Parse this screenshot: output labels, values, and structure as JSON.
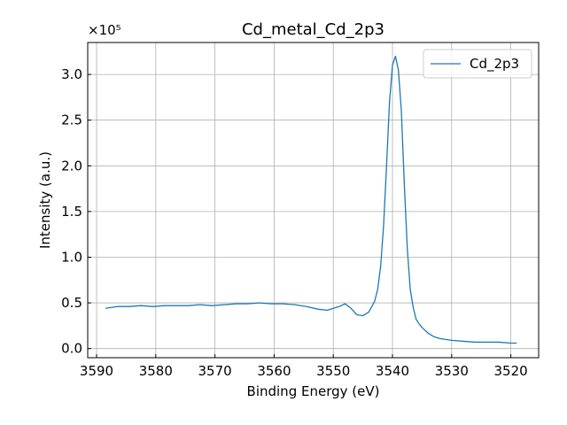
{
  "chart_data": {
    "type": "line",
    "title": "Cd_metal_Cd_2p3",
    "xlabel": "Binding Energy (eV)",
    "ylabel": "Intensity (a.u.)",
    "y_multiplier_label": "×10⁵",
    "xlim": [
      3591.5,
      3515.3
    ],
    "ylim": [
      -0.1,
      3.35
    ],
    "x_reversed": true,
    "y_scale_factor": 100000,
    "xticks": [
      3590,
      3580,
      3570,
      3560,
      3550,
      3540,
      3530,
      3520
    ],
    "yticks": [
      0.0,
      0.5,
      1.0,
      1.5,
      2.0,
      2.5,
      3.0
    ],
    "ytick_labels": [
      "0.0",
      "0.5",
      "1.0",
      "1.5",
      "2.0",
      "2.5",
      "3.0"
    ],
    "grid": true,
    "legend_position": "top-right",
    "series": [
      {
        "name": "Cd_2p3",
        "color": "#1f77b4",
        "x": [
          3588.5,
          3586.5,
          3584.5,
          3582.5,
          3580.5,
          3578.5,
          3576.5,
          3574.5,
          3572.5,
          3570.5,
          3568.5,
          3566.5,
          3564.5,
          3562.5,
          3560.5,
          3558.5,
          3556.5,
          3554.5,
          3552.5,
          3551.0,
          3550.0,
          3549.0,
          3548.0,
          3547.0,
          3546.0,
          3545.0,
          3544.0,
          3543.0,
          3542.5,
          3542.0,
          3541.5,
          3541.0,
          3540.5,
          3540.0,
          3539.5,
          3539.0,
          3538.5,
          3538.0,
          3537.5,
          3537.0,
          3536.5,
          3536.0,
          3535.5,
          3535.0,
          3534.5,
          3534.0,
          3533.0,
          3532.0,
          3531.0,
          3530.0,
          3528.0,
          3526.0,
          3524.0,
          3522.0,
          3520.0,
          3519.0
        ],
        "y": [
          0.44,
          0.46,
          0.46,
          0.47,
          0.46,
          0.47,
          0.47,
          0.47,
          0.48,
          0.47,
          0.48,
          0.49,
          0.49,
          0.5,
          0.49,
          0.49,
          0.48,
          0.46,
          0.43,
          0.42,
          0.44,
          0.46,
          0.49,
          0.44,
          0.37,
          0.36,
          0.4,
          0.52,
          0.65,
          0.9,
          1.35,
          2.0,
          2.7,
          3.1,
          3.2,
          3.05,
          2.6,
          1.8,
          1.1,
          0.65,
          0.45,
          0.32,
          0.27,
          0.23,
          0.2,
          0.17,
          0.13,
          0.11,
          0.1,
          0.09,
          0.08,
          0.07,
          0.07,
          0.07,
          0.06,
          0.06
        ]
      }
    ]
  }
}
